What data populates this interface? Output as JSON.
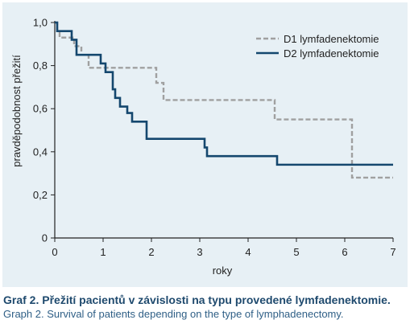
{
  "chart_data": {
    "type": "line",
    "step": true,
    "xlabel": "roky",
    "ylabel": "pravděpodobnost přežití",
    "xlim": [
      0,
      7
    ],
    "ylim": [
      0,
      1
    ],
    "xticks": [
      "0",
      "1",
      "2",
      "3",
      "4",
      "5",
      "6",
      "7"
    ],
    "yticks": [
      "0",
      "0,2",
      "0,4",
      "0,6",
      "0,8",
      "1,0"
    ],
    "grid": false,
    "legend_position": "top-right",
    "series": [
      {
        "name": "D1 lymfadenektomie",
        "style": "dashed",
        "color": "#a0a0a0",
        "x": [
          0,
          0.05,
          0.1,
          0.4,
          0.55,
          0.7,
          2.1,
          2.25,
          4.55,
          6.15,
          7.0
        ],
        "y": [
          1.0,
          0.96,
          0.93,
          0.89,
          0.85,
          0.79,
          0.72,
          0.64,
          0.55,
          0.28,
          0.28
        ]
      },
      {
        "name": "D2 lymfadenektomie",
        "style": "solid",
        "color": "#14476e",
        "x": [
          0,
          0.05,
          0.35,
          0.45,
          0.95,
          1.05,
          1.2,
          1.25,
          1.35,
          1.5,
          1.6,
          1.9,
          3.1,
          3.15,
          4.6,
          7.0
        ],
        "y": [
          1.0,
          0.96,
          0.92,
          0.85,
          0.81,
          0.77,
          0.69,
          0.65,
          0.61,
          0.58,
          0.54,
          0.46,
          0.42,
          0.38,
          0.34,
          0.34
        ]
      }
    ]
  },
  "caption": {
    "line1": "Graf 2. Přežití pacientů v závislosti na typu provedené lymfadenektomie.",
    "line2": "Graph 2. Survival of patients depending on the type of lymphadenectomy."
  }
}
